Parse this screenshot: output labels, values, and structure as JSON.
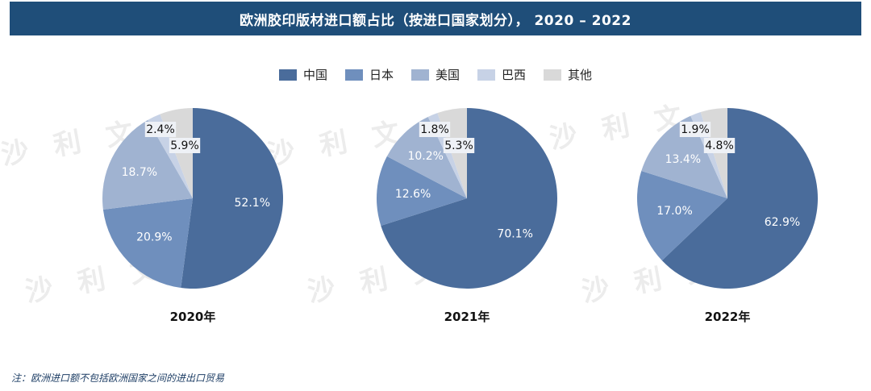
{
  "header": {
    "title": "欧洲胶印版材进口额占比（按进口国家划分），  2020 – 2022"
  },
  "legend": [
    {
      "label": "中国",
      "color": "#4a6c9b"
    },
    {
      "label": "日本",
      "color": "#6f8fbd"
    },
    {
      "label": "美国",
      "color": "#a0b3d1"
    },
    {
      "label": "巴西",
      "color": "#c7d2e6"
    },
    {
      "label": "其他",
      "color": "#d9d9d9"
    }
  ],
  "chart_data": [
    {
      "type": "pie",
      "title": "2020年",
      "categories": [
        "中国",
        "日本",
        "美国",
        "巴西",
        "其他"
      ],
      "values": [
        52.1,
        20.9,
        18.7,
        2.4,
        5.9
      ],
      "labels": [
        "52.1%",
        "20.9%",
        "18.7%",
        "2.4%",
        "5.9%"
      ]
    },
    {
      "type": "pie",
      "title": "2021年",
      "categories": [
        "中国",
        "日本",
        "美国",
        "巴西",
        "其他"
      ],
      "values": [
        70.1,
        12.6,
        10.2,
        1.8,
        5.3
      ],
      "labels": [
        "70.1%",
        "12.6%",
        "10.2%",
        "1.8%",
        "5.3%"
      ]
    },
    {
      "type": "pie",
      "title": "2022年",
      "categories": [
        "中国",
        "日本",
        "美国",
        "巴西",
        "其他"
      ],
      "values": [
        62.9,
        17.0,
        13.4,
        1.9,
        4.8
      ],
      "labels": [
        "62.9%",
        "17.0%",
        "13.4%",
        "1.9%",
        "4.8%"
      ]
    }
  ],
  "watermark": {
    "text": "沙 利 文"
  },
  "footnote": "注：欧洲进口额不包括欧洲国家之间的进出口贸易"
}
